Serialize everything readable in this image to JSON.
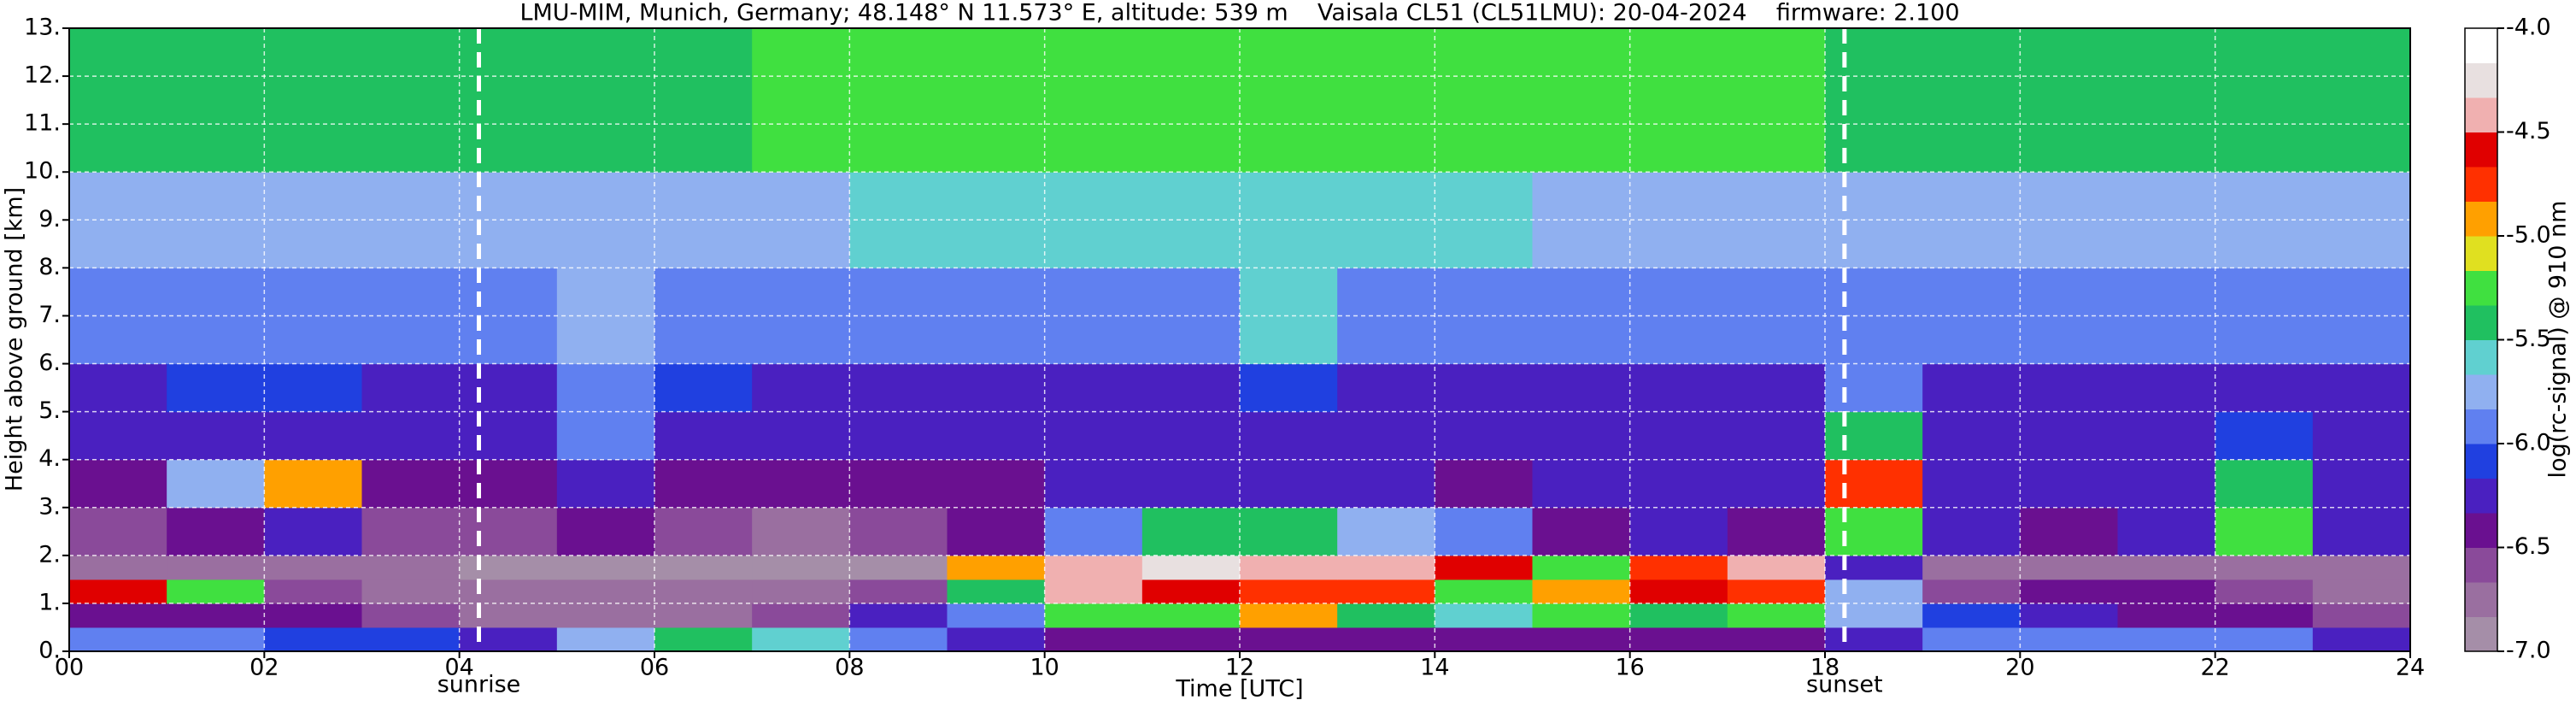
{
  "chart_data": {
    "type": "heatmap",
    "title": "LMU-MIM, Munich, Germany; 48.148° N 11.573° E, altitude: 539 m    Vaisala CL51 (CL51LMU): 20-04-2024    firmware: 2.100",
    "x_label": "Time [UTC]",
    "y_label": "Height above ground [km]",
    "colorbar_label": "log(rc-signal) @ 910 nm",
    "xlim": [
      0,
      24
    ],
    "ylim": [
      0,
      13
    ],
    "xticks": [
      {
        "value": 0,
        "label": "00"
      },
      {
        "value": 2,
        "label": "02"
      },
      {
        "value": 4,
        "label": "04"
      },
      {
        "value": 6,
        "label": "06"
      },
      {
        "value": 8,
        "label": "08"
      },
      10,
      12,
      14,
      16,
      18,
      20,
      22,
      24
    ],
    "yticks": [
      {
        "value": 0,
        "label": "0."
      },
      {
        "value": 1,
        "label": "1."
      },
      {
        "value": 2,
        "label": "2."
      },
      {
        "value": 3,
        "label": "3."
      },
      {
        "value": 4,
        "label": "4."
      },
      {
        "value": 5,
        "label": "5."
      },
      {
        "value": 6,
        "label": "6."
      },
      {
        "value": 7,
        "label": "7."
      },
      {
        "value": 8,
        "label": "8."
      },
      {
        "value": 9,
        "label": "9."
      },
      {
        "value": 10,
        "label": "10."
      },
      {
        "value": 11,
        "label": "11."
      },
      {
        "value": 12,
        "label": "12."
      },
      {
        "value": 13,
        "label": "13."
      }
    ],
    "zlim": [
      -7,
      -4
    ],
    "zticks": [
      {
        "value": -7,
        "label": "-7.0"
      },
      -6.5,
      {
        "value": -6,
        "label": "-6.0"
      },
      -5.5,
      {
        "value": -5,
        "label": "-5.0"
      },
      -4.5,
      {
        "value": -4,
        "label": "-4.0"
      }
    ],
    "colormap": [
      "#a58ea8",
      "#9a6fa0",
      "#8a4a9a",
      "#6a1090",
      "#4a20c0",
      "#2040e0",
      "#6080f0",
      "#90b0f0",
      "#60d0d0",
      "#20c060",
      "#40e040",
      "#e0e020",
      "#ffa000",
      "#ff3000",
      "#e00000",
      "#f0b0b0",
      "#e8e0e0",
      "#ffffff"
    ],
    "grid": true,
    "xbins": [
      0,
      1,
      2,
      3,
      4,
      5,
      6,
      7,
      8,
      9,
      10,
      11,
      12,
      13,
      14,
      15,
      16,
      17,
      18,
      19,
      20,
      21,
      22,
      23,
      24
    ],
    "ybins": [
      0,
      0.5,
      1,
      1.5,
      2,
      3,
      4,
      5,
      6,
      8,
      10,
      13
    ],
    "z": [
      [
        -6.0,
        -6.0,
        -6.1,
        -6.1,
        -6.2,
        -5.8,
        -5.5,
        -5.6,
        -5.9,
        -6.3,
        -6.4,
        -6.4,
        -6.5,
        -6.4,
        -6.4,
        -6.5,
        -6.4,
        -6.4,
        -6.3,
        -5.9,
        -5.9,
        -6.0,
        -6.0,
        -6.2
      ],
      [
        -6.4,
        -6.5,
        -6.5,
        -6.6,
        -6.7,
        -6.7,
        -6.7,
        -6.6,
        -6.2,
        -6.0,
        -5.2,
        -5.3,
        -5.0,
        -5.4,
        -5.6,
        -5.2,
        -5.4,
        -5.3,
        -5.8,
        -6.1,
        -6.3,
        -6.4,
        -6.5,
        -6.6
      ],
      [
        -4.6,
        -5.2,
        -6.6,
        -6.7,
        -6.8,
        -6.8,
        -6.8,
        -6.8,
        -6.6,
        -5.5,
        -4.5,
        -4.6,
        -4.7,
        -4.8,
        -5.2,
        -4.9,
        -4.6,
        -4.7,
        -5.8,
        -6.6,
        -6.4,
        -6.5,
        -6.6,
        -6.7
      ],
      [
        -6.8,
        -6.8,
        -6.7,
        -6.8,
        -6.9,
        -6.9,
        -6.9,
        -6.9,
        -6.9,
        -5.0,
        -4.4,
        -4.3,
        -4.4,
        -4.5,
        -4.6,
        -5.3,
        -4.8,
        -4.5,
        -6.2,
        -6.8,
        -6.8,
        -6.7,
        -6.7,
        -6.8
      ],
      [
        -6.6,
        -6.5,
        -6.2,
        -6.6,
        -6.6,
        -6.5,
        -6.6,
        -6.7,
        -6.6,
        -6.5,
        -6.0,
        -5.4,
        -5.4,
        -5.7,
        -5.9,
        -6.4,
        -6.3,
        -6.4,
        -5.2,
        -6.2,
        -6.4,
        -6.2,
        -5.3,
        -6.3
      ],
      [
        -6.5,
        -5.8,
        -4.9,
        -6.4,
        -6.4,
        -6.3,
        -6.4,
        -6.4,
        -6.4,
        -6.4,
        -6.3,
        -6.2,
        -6.3,
        -6.3,
        -6.4,
        -6.3,
        -6.3,
        -6.3,
        -4.8,
        -6.2,
        -6.3,
        -6.3,
        -5.5,
        -6.3
      ],
      [
        -6.3,
        -6.2,
        -6.2,
        -6.2,
        -6.2,
        -6.0,
        -6.2,
        -6.3,
        -6.3,
        -6.3,
        -6.3,
        -6.3,
        -6.3,
        -6.3,
        -6.3,
        -6.3,
        -6.3,
        -6.3,
        -5.5,
        -6.2,
        -6.2,
        -6.2,
        -6.1,
        -6.2
      ],
      [
        -6.2,
        -6.1,
        -6.1,
        -6.2,
        -6.2,
        -5.9,
        -6.1,
        -6.2,
        -6.2,
        -6.2,
        -6.2,
        -6.2,
        -6.1,
        -6.2,
        -6.2,
        -6.2,
        -6.2,
        -6.2,
        -6.0,
        -6.2,
        -6.2,
        -6.2,
        -6.2,
        -6.2
      ],
      [
        -6.0,
        -6.0,
        -6.0,
        -6.0,
        -6.0,
        -5.8,
        -6.0,
        -6.0,
        -6.0,
        -6.0,
        -6.0,
        -6.0,
        -5.6,
        -6.0,
        -6.0,
        -6.0,
        -6.0,
        -6.0,
        -6.0,
        -6.0,
        -6.0,
        -6.0,
        -6.0,
        -6.0
      ],
      [
        -5.8,
        -5.8,
        -5.8,
        -5.8,
        -5.8,
        -5.7,
        -5.7,
        -5.7,
        -5.6,
        -5.6,
        -5.6,
        -5.6,
        -5.6,
        -5.6,
        -5.6,
        -5.7,
        -5.7,
        -5.7,
        -5.8,
        -5.8,
        -5.8,
        -5.8,
        -5.8,
        -5.8
      ],
      [
        -5.5,
        -5.5,
        -5.5,
        -5.5,
        -5.5,
        -5.4,
        -5.4,
        -5.3,
        -5.3,
        -5.2,
        -5.2,
        -5.2,
        -5.2,
        -5.2,
        -5.2,
        -5.3,
        -5.3,
        -5.3,
        -5.4,
        -5.5,
        -5.5,
        -5.5,
        -5.5,
        -5.5
      ]
    ],
    "annotations": [
      {
        "text": "sunrise",
        "x": 4.2
      },
      {
        "text": "sunset",
        "x": 18.2
      }
    ]
  }
}
